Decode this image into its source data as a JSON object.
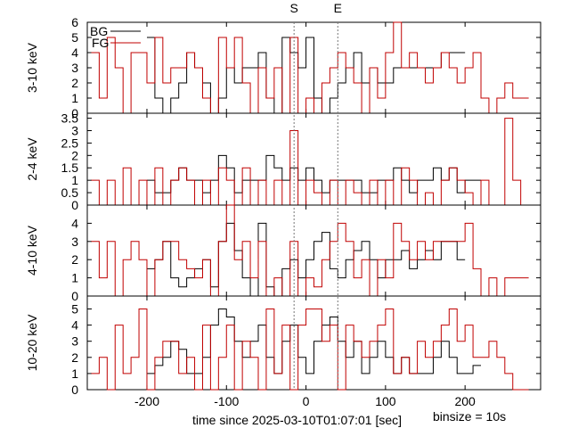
{
  "chart_data": {
    "type": "line",
    "xlabel": "time since 2025-03-10T01:07:01 [sec]",
    "binsize_label": "binsize = 10s",
    "xlim": [
      -275,
      295
    ],
    "xticks": [
      -200,
      -100,
      0,
      100,
      200
    ],
    "markers": [
      {
        "label": "S",
        "x": -15
      },
      {
        "label": "E",
        "x": 40
      }
    ],
    "legend": {
      "placement": "top-left",
      "entries": [
        {
          "name": "BG",
          "color": "#000000"
        },
        {
          "name": "FG",
          "color": "#c00000"
        }
      ]
    },
    "panels": [
      {
        "ylabel": "3-10 keV",
        "ylim": [
          0,
          6
        ],
        "yticks": [
          0,
          1,
          2,
          3,
          4,
          5,
          6
        ],
        "series": [
          {
            "name": "BG",
            "color": "#000000",
            "x": [
              -195,
              -185,
              -175,
              -165,
              -155,
              -145,
              -135,
              -125,
              -115,
              -105,
              -95,
              -85,
              -75,
              -65,
              -55,
              -45,
              -35,
              -25,
              -15,
              -5,
              5,
              15,
              25,
              35,
              45,
              55,
              65,
              75,
              85,
              95,
              105,
              115,
              125,
              135,
              145,
              155,
              165,
              175,
              185,
              195
            ],
            "values": [
              5,
              1,
              0,
              1,
              2,
              4,
              3,
              2,
              0,
              1,
              3,
              2,
              3,
              3,
              4,
              1,
              0,
              5,
              4,
              3,
              5,
              1,
              0,
              1,
              2,
              3,
              4,
              2,
              3,
              2,
              2,
              3,
              3,
              3,
              3,
              3,
              3,
              4,
              4,
              4
            ]
          },
          {
            "name": "FG",
            "color": "#c00000",
            "x": [
              -265,
              -255,
              -245,
              -235,
              -225,
              -215,
              -205,
              -195,
              -185,
              -175,
              -165,
              -155,
              -145,
              -135,
              -125,
              -115,
              -105,
              -95,
              -85,
              -75,
              -65,
              -55,
              -45,
              -35,
              -25,
              -15,
              -5,
              5,
              15,
              25,
              35,
              45,
              55,
              65,
              75,
              85,
              95,
              105,
              115,
              125,
              135,
              145,
              155,
              165,
              175,
              185,
              195,
              205,
              215,
              225,
              235,
              245,
              255,
              265,
              275
            ],
            "values": [
              4,
              1,
              5,
              3,
              0,
              4,
              4,
              2,
              5,
              2,
              3,
              3,
              4,
              3,
              1,
              0,
              5,
              3,
              5,
              2,
              0,
              3,
              1,
              3,
              0,
              5,
              0,
              1,
              0,
              2,
              3,
              4,
              3,
              2,
              0,
              3,
              1,
              4,
              6,
              3,
              4,
              3,
              2,
              3,
              4,
              3,
              2,
              3,
              4,
              1,
              0,
              1,
              2,
              1,
              1
            ]
          }
        ]
      },
      {
        "ylabel": "2-4 keV",
        "ylim": [
          0,
          3.7
        ],
        "yticks": [
          0,
          0.5,
          1,
          1.5,
          2,
          2.5,
          3,
          3.5
        ],
        "series": [
          {
            "name": "BG",
            "color": "#000000",
            "x": [
              -195,
              -185,
              -175,
              -165,
              -155,
              -145,
              -135,
              -125,
              -115,
              -105,
              -95,
              -85,
              -75,
              -65,
              -55,
              -45,
              -35,
              -25,
              -15,
              -5,
              5,
              15,
              25,
              35,
              45,
              55,
              65,
              75,
              85,
              95,
              105,
              115,
              125,
              135,
              145,
              155,
              165,
              175,
              185,
              195,
              205,
              215
            ],
            "values": [
              1,
              0.5,
              0.5,
              1,
              1.5,
              1,
              1,
              0.5,
              1,
              2,
              1.5,
              0.5,
              1,
              1,
              1,
              2,
              1.5,
              1,
              1.5,
              1,
              1.5,
              1,
              0.5,
              1,
              1,
              1,
              1,
              0.5,
              0.5,
              1,
              1,
              1.5,
              1,
              0.5,
              1,
              1,
              1.5,
              1,
              1.5,
              0.5,
              1,
              1
            ]
          },
          {
            "name": "FG",
            "color": "#c00000",
            "x": [
              -265,
              -255,
              -245,
              -235,
              -225,
              -215,
              -205,
              -195,
              -185,
              -175,
              -165,
              -155,
              -145,
              -135,
              -125,
              -115,
              -105,
              -95,
              -85,
              -75,
              -65,
              -55,
              -45,
              -35,
              -25,
              -15,
              -5,
              5,
              15,
              25,
              35,
              45,
              55,
              65,
              75,
              85,
              95,
              105,
              115,
              125,
              135,
              145,
              155,
              165,
              175,
              185,
              195,
              205,
              215,
              225,
              235,
              245,
              255,
              265,
              275
            ],
            "values": [
              1,
              0,
              1,
              0,
              1.5,
              0,
              1,
              0,
              1.5,
              0,
              1,
              1.5,
              1,
              0,
              1,
              0,
              1.5,
              1,
              0,
              1.5,
              0,
              1,
              0,
              1,
              0,
              3,
              0,
              1,
              0.5,
              0,
              1,
              0,
              1,
              0.5,
              0,
              1,
              0,
              1,
              0,
              1.5,
              1,
              0,
              0.5,
              0,
              1,
              1.5,
              1,
              0.5,
              0,
              1,
              0,
              0,
              3.5,
              1,
              0
            ]
          }
        ]
      },
      {
        "ylabel": "4-10 keV",
        "ylim": [
          0,
          5
        ],
        "yticks": [
          0,
          1,
          2,
          3,
          4
        ],
        "series": [
          {
            "name": "BG",
            "color": "#000000",
            "x": [
              -195,
              -185,
              -175,
              -165,
              -155,
              -145,
              -135,
              -125,
              -115,
              -105,
              -95,
              -85,
              -75,
              -65,
              -55,
              -45,
              -35,
              -25,
              -15,
              -5,
              5,
              15,
              25,
              35,
              45,
              55,
              65,
              75,
              85,
              95,
              105,
              115,
              125,
              135,
              145,
              155,
              165,
              175,
              185,
              195
            ],
            "values": [
              1.5,
              2,
              3,
              1,
              0.5,
              1,
              1.5,
              2,
              0.5,
              3,
              4,
              2.5,
              1,
              0,
              4,
              0.5,
              0,
              1.5,
              2,
              1,
              2,
              3,
              3.5,
              1.5,
              1,
              2,
              2.5,
              3,
              2,
              1,
              2,
              2,
              2.5,
              1.5,
              2,
              2.5,
              2,
              3,
              3,
              2
            ]
          },
          {
            "name": "FG",
            "color": "#c00000",
            "x": [
              -265,
              -255,
              -245,
              -235,
              -225,
              -215,
              -205,
              -195,
              -185,
              -175,
              -165,
              -155,
              -145,
              -135,
              -125,
              -115,
              -105,
              -95,
              -85,
              -75,
              -65,
              -55,
              -45,
              -35,
              -25,
              -15,
              -5,
              5,
              15,
              25,
              35,
              45,
              55,
              65,
              75,
              85,
              95,
              105,
              115,
              125,
              135,
              145,
              155,
              165,
              175,
              185,
              195,
              205,
              215,
              225,
              235,
              245,
              255,
              265,
              275
            ],
            "values": [
              3,
              1,
              3,
              0,
              2,
              3,
              2,
              0,
              2,
              3,
              3,
              2,
              1.5,
              1,
              2,
              0,
              3,
              5,
              2,
              3,
              1,
              3,
              0,
              1,
              0,
              3,
              0,
              1,
              0.5,
              2,
              3,
              4,
              3,
              1,
              2,
              0,
              2,
              1,
              4,
              3,
              2,
              3,
              2,
              3,
              3,
              3,
              3,
              4,
              1.5,
              0,
              1,
              0,
              1,
              1,
              1
            ]
          }
        ]
      },
      {
        "ylabel": "10-20 keV",
        "ylim": [
          0,
          5.8
        ],
        "yticks": [
          0,
          1,
          2,
          3,
          4,
          5
        ],
        "series": [
          {
            "name": "BG",
            "color": "#000000",
            "x": [
              -195,
              -185,
              -175,
              -165,
              -155,
              -145,
              -135,
              -125,
              -115,
              -105,
              -95,
              -85,
              -75,
              -65,
              -55,
              -45,
              -35,
              -25,
              -15,
              -5,
              5,
              15,
              25,
              35,
              45,
              55,
              65,
              75,
              85,
              95,
              105,
              115,
              125,
              135,
              145,
              155,
              165,
              175,
              185,
              195,
              205,
              215
            ],
            "values": [
              1,
              1.5,
              2,
              3,
              2.5,
              1,
              1,
              2,
              4,
              5,
              4.5,
              3,
              2,
              3,
              4,
              2,
              1,
              3,
              4,
              2,
              1,
              3,
              4,
              4.5,
              3,
              2,
              3,
              1,
              2,
              3,
              2,
              1,
              2,
              1,
              1,
              1,
              2,
              3,
              2,
              1,
              1,
              1.5
            ]
          },
          {
            "name": "FG",
            "color": "#c00000",
            "x": [
              -265,
              -255,
              -245,
              -235,
              -225,
              -215,
              -205,
              -195,
              -185,
              -175,
              -165,
              -155,
              -145,
              -135,
              -125,
              -115,
              -105,
              -95,
              -85,
              -75,
              -65,
              -55,
              -45,
              -35,
              -25,
              -15,
              -5,
              5,
              15,
              25,
              35,
              45,
              55,
              65,
              75,
              85,
              95,
              105,
              115,
              125,
              135,
              145,
              155,
              165,
              175,
              185,
              195,
              205,
              215,
              225,
              235,
              245,
              255,
              265,
              275
            ],
            "values": [
              1,
              2,
              0,
              4,
              1,
              2,
              5,
              0,
              2,
              3,
              3,
              1,
              2,
              0,
              4,
              0,
              2,
              4,
              0,
              3,
              2,
              0,
              5,
              1,
              4,
              0,
              4,
              5,
              5,
              3,
              4,
              0,
              4,
              3,
              2,
              3,
              4,
              5,
              1,
              2,
              1,
              3,
              2,
              3,
              4,
              5,
              3,
              4,
              2,
              2,
              3,
              2,
              1,
              0,
              0
            ]
          }
        ]
      }
    ]
  }
}
